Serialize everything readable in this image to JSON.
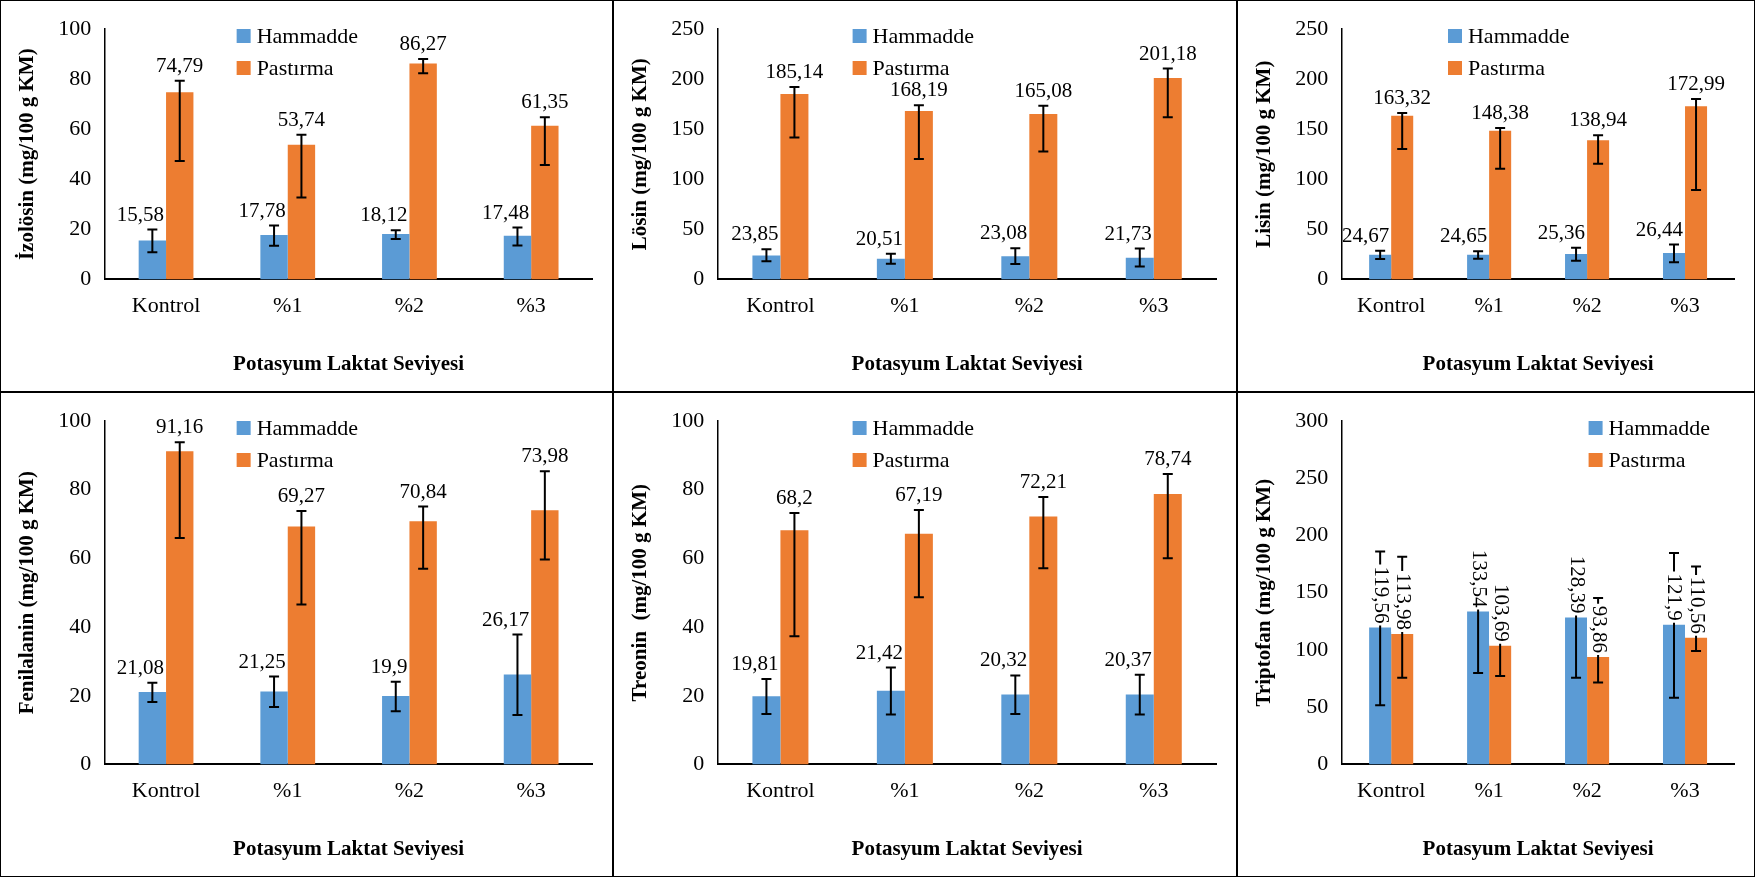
{
  "chart_data": [
    {
      "type": "bar",
      "categories": [
        "Kontrol",
        "%1",
        "%2",
        "%3"
      ],
      "xlabel": "Potasyum Laktat Seviyesi",
      "ylabel": "İzolösin (mg/100 g KM)",
      "ylim": [
        0,
        100
      ],
      "yticks": [
        0,
        20,
        40,
        60,
        80,
        100
      ],
      "grid": false,
      "legend": "top",
      "series": [
        {
          "name": "Hammadde",
          "color": "#5b9bd5",
          "values": [
            15.58,
            17.78,
            18.12,
            17.48
          ],
          "value_labels": [
            "15,58",
            "17,78",
            "18,12",
            "17,48"
          ],
          "errors": [
            [
              10.8,
              19.9
            ],
            [
              13.4,
              21.5
            ],
            [
              16.1,
              19.6
            ],
            [
              13.5,
              20.7
            ]
          ]
        },
        {
          "name": "Pastırma",
          "color": "#ed7d31",
          "values": [
            74.79,
            53.74,
            86.27,
            61.35
          ],
          "value_labels": [
            "74,79",
            "53,74",
            "86,27",
            "61,35"
          ],
          "errors": [
            [
              47.3,
              79.3
            ],
            [
              32.7,
              57.8
            ],
            [
              82.3,
              88.0
            ],
            [
              45.7,
              64.8
            ]
          ]
        }
      ]
    },
    {
      "type": "bar",
      "categories": [
        "Kontrol",
        "%1",
        "%2",
        "%3"
      ],
      "xlabel": "Potasyum Laktat Seviyesi",
      "ylabel": "Lösin (mg/100 g KM)",
      "ylim": [
        0,
        250
      ],
      "yticks": [
        0,
        50,
        100,
        150,
        200,
        250
      ],
      "grid": false,
      "legend": "top",
      "series": [
        {
          "name": "Hammadde",
          "color": "#5b9bd5",
          "values": [
            23.85,
            20.51,
            23.08,
            21.73
          ],
          "value_labels": [
            "23,85",
            "20,51",
            "23,08",
            "21,73"
          ],
          "errors": [
            [
              18.2,
              30.1
            ],
            [
              15.7,
              25.5
            ],
            [
              15.4,
              31.1
            ],
            [
              12.9,
              30.8
            ]
          ]
        },
        {
          "name": "Pastırma",
          "color": "#ed7d31",
          "values": [
            185.14,
            168.19,
            165.08,
            201.18
          ],
          "value_labels": [
            "185,14",
            "168,19",
            "165,08",
            "201,18"
          ],
          "errors": [
            [
              141.6,
              192
            ],
            [
              120.3,
              173.8
            ],
            [
              127.6,
              173.4
            ],
            [
              161.9,
              210.5
            ]
          ]
        }
      ]
    },
    {
      "type": "bar",
      "categories": [
        "Kontrol",
        "%1",
        "%2",
        "%3"
      ],
      "xlabel": "Potasyum Laktat Seviyesi",
      "ylabel": "Lisin (mg/100 g KM)",
      "ylim": [
        0,
        250
      ],
      "yticks": [
        0,
        50,
        100,
        150,
        200,
        250
      ],
      "grid": false,
      "legend": "top",
      "series": [
        {
          "name": "Hammadde",
          "color": "#5b9bd5",
          "values": [
            24.67,
            24.65,
            25.36,
            26.44
          ],
          "value_labels": [
            "24,67",
            "24,65",
            "25,36",
            "26,44"
          ],
          "errors": [
            [
              20.3,
              28.7
            ],
            [
              20.6,
              28.1
            ],
            [
              18.6,
              31.6
            ],
            [
              17.1,
              34.8
            ]
          ]
        },
        {
          "name": "Pastırma",
          "color": "#ed7d31",
          "values": [
            163.32,
            148.38,
            138.94,
            172.99
          ],
          "value_labels": [
            "163,32",
            "148,38",
            "138,94",
            "172,99"
          ],
          "errors": [
            [
              130.2,
              166.2
            ],
            [
              110.5,
              151.1
            ],
            [
              115.4,
              143.9
            ],
            [
              89.3,
              180.1
            ]
          ]
        }
      ]
    },
    {
      "type": "bar",
      "categories": [
        "Kontrol",
        "%1",
        "%2",
        "%3"
      ],
      "xlabel": "Potasyum Laktat Seviyesi",
      "ylabel": "Fenilalanin (mg/100 g KM)",
      "ylim": [
        0,
        100
      ],
      "yticks": [
        0,
        20,
        40,
        60,
        80,
        100
      ],
      "grid": false,
      "legend": "top",
      "series": [
        {
          "name": "Hammadde",
          "color": "#5b9bd5",
          "values": [
            21.08,
            21.25,
            19.9,
            26.17
          ],
          "value_labels": [
            "21,08",
            "21,25",
            "19,9",
            "26,17"
          ],
          "errors": [
            [
              18.2,
              23.8
            ],
            [
              16.7,
              25.6
            ],
            [
              15.5,
              24.1
            ],
            [
              14.4,
              37.8
            ]
          ]
        },
        {
          "name": "Pastırma",
          "color": "#ed7d31",
          "values": [
            91.16,
            69.27,
            70.84,
            73.98
          ],
          "value_labels": [
            "91,16",
            "69,27",
            "70,84",
            "73,98"
          ],
          "errors": [
            [
              65.9,
              93.8
            ],
            [
              46.6,
              73.8
            ],
            [
              57.0,
              75.1
            ],
            [
              59.7,
              85.4
            ]
          ]
        }
      ]
    },
    {
      "type": "bar",
      "categories": [
        "Kontrol",
        "%1",
        "%2",
        "%3"
      ],
      "xlabel": "Potasyum Laktat Seviyesi",
      "ylabel": "Treonin  (mg/100 g KM)",
      "ylim": [
        0,
        100
      ],
      "yticks": [
        0,
        20,
        40,
        60,
        80,
        100
      ],
      "grid": false,
      "legend": "top",
      "series": [
        {
          "name": "Hammadde",
          "color": "#5b9bd5",
          "values": [
            19.81,
            21.42,
            20.32,
            20.37
          ],
          "value_labels": [
            "19,81",
            "21,42",
            "20,32",
            "20,37"
          ],
          "errors": [
            [
              14.7,
              24.9
            ],
            [
              14.5,
              28.2
            ],
            [
              14.7,
              25.9
            ],
            [
              14.5,
              26.1
            ]
          ]
        },
        {
          "name": "Pastırma",
          "color": "#ed7d31",
          "values": [
            68.2,
            67.19,
            72.21,
            78.74
          ],
          "value_labels": [
            "68,2",
            "67,19",
            "72,21",
            "78,74"
          ],
          "errors": [
            [
              37.3,
              73.2
            ],
            [
              48.7,
              74.1
            ],
            [
              57.1,
              77.9
            ],
            [
              60.0,
              84.6
            ]
          ]
        }
      ]
    },
    {
      "type": "bar",
      "categories": [
        "Kontrol",
        "%1",
        "%2",
        "%3"
      ],
      "xlabel": "Potasyum Laktat Seviyesi",
      "ylabel": "Triptofan (mg/100 g KM)",
      "ylim": [
        0,
        300
      ],
      "yticks": [
        0,
        50,
        100,
        150,
        200,
        250,
        300
      ],
      "grid": false,
      "legend": "top right",
      "series": [
        {
          "name": "Hammadde",
          "color": "#5b9bd5",
          "values": [
            119.56,
            133.54,
            128.39,
            121.9
          ],
          "value_labels": [
            "119,56",
            "133,54",
            "128,39",
            "121,9"
          ],
          "errors": [
            [
              51.6,
              186
            ],
            [
              79.9,
              186
            ],
            [
              75.8,
              180.7
            ],
            [
              58.3,
              184.7
            ]
          ]
        },
        {
          "name": "Pastırma",
          "color": "#ed7d31",
          "values": [
            113.98,
            103.69,
            93.86,
            110.56
          ],
          "value_labels": [
            "113,98",
            "103,69",
            "93,86",
            "110,56"
          ],
          "errors": [
            [
              75.8,
              181.3
            ],
            [
              77.2,
              156
            ],
            [
              71.5,
              145.3
            ],
            [
              99.1,
              172.9
            ]
          ]
        }
      ]
    }
  ]
}
